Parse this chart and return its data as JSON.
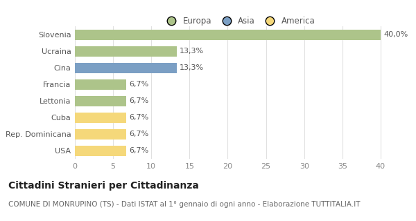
{
  "categories": [
    "Slovenia",
    "Ucraina",
    "Cina",
    "Francia",
    "Lettonia",
    "Cuba",
    "Rep. Dominicana",
    "USA"
  ],
  "values": [
    40.0,
    13.3,
    13.3,
    6.7,
    6.7,
    6.7,
    6.7,
    6.7
  ],
  "labels": [
    "40,0%",
    "13,3%",
    "13,3%",
    "6,7%",
    "6,7%",
    "6,7%",
    "6,7%",
    "6,7%"
  ],
  "colors": [
    "#adc48a",
    "#adc48a",
    "#7b9fc4",
    "#adc48a",
    "#adc48a",
    "#f5d87a",
    "#f5d87a",
    "#f5d87a"
  ],
  "legend_labels": [
    "Europa",
    "Asia",
    "America"
  ],
  "legend_colors": [
    "#adc48a",
    "#7b9fc4",
    "#f5d87a"
  ],
  "title": "Cittadini Stranieri per Cittadinanza",
  "subtitle": "COMUNE DI MONRUPINO (TS) - Dati ISTAT al 1° gennaio di ogni anno - Elaborazione TUTTITALIA.IT",
  "xlim": [
    0,
    43
  ],
  "xticks": [
    0,
    5,
    10,
    15,
    20,
    25,
    30,
    35,
    40
  ],
  "background_color": "#ffffff",
  "plot_bg_color": "#ffffff",
  "grid_color": "#e0e0e0",
  "bar_height": 0.65,
  "title_fontsize": 10,
  "subtitle_fontsize": 7.5,
  "label_fontsize": 8,
  "tick_fontsize": 8,
  "legend_fontsize": 8.5
}
